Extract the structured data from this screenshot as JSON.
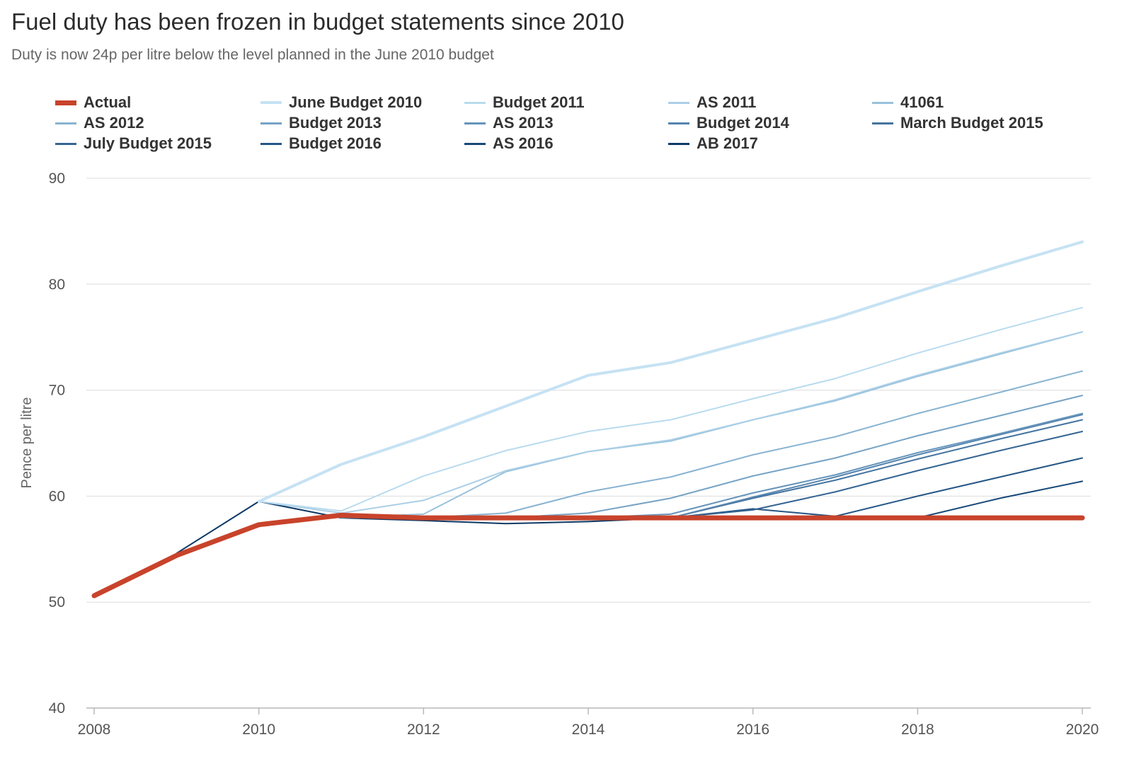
{
  "chart_data": {
    "type": "line",
    "title": "Fuel duty has been frozen in budget statements since 2010",
    "subtitle": "Duty is now 24p per litre below the level planned in the June 2010 budget",
    "xlabel": "",
    "ylabel": "Pence per litre",
    "x": [
      2008,
      2009,
      2010,
      2011,
      2012,
      2013,
      2014,
      2015,
      2016,
      2017,
      2018,
      2019,
      2020
    ],
    "xticks": [
      "2008",
      "2010",
      "2012",
      "2014",
      "2016",
      "2018",
      "2020"
    ],
    "yticks": [
      "40",
      "50",
      "60",
      "70",
      "80",
      "90"
    ],
    "xlim": [
      2008,
      2020
    ],
    "ylim": [
      40,
      90
    ],
    "grid": true,
    "legend_position": "top",
    "series": [
      {
        "name": "Actual",
        "color": "#c8432b",
        "values": [
          50.6,
          54.4,
          57.3,
          58.2,
          57.95,
          57.95,
          57.95,
          57.95,
          57.95,
          57.95,
          57.95,
          57.95,
          57.95
        ]
      },
      {
        "name": "June Budget 2010",
        "color": "#c6e2f3",
        "values": [
          null,
          null,
          59.5,
          63.0,
          65.6,
          68.5,
          71.4,
          72.6,
          74.7,
          76.8,
          79.3,
          81.7,
          84.0
        ]
      },
      {
        "name": "Budget 2011",
        "color": "#b9dbee",
        "values": [
          null,
          null,
          59.5,
          58.6,
          61.9,
          64.3,
          66.1,
          67.2,
          69.2,
          71.1,
          73.5,
          75.7,
          77.8
        ]
      },
      {
        "name": "AS 2011",
        "color": "#aacfe6",
        "values": [
          null,
          null,
          59.5,
          58.4,
          59.6,
          62.4,
          64.2,
          65.3,
          67.2,
          69.1,
          71.4,
          73.5,
          75.5
        ]
      },
      {
        "name": "41061",
        "color": "#99c2dc",
        "values": [
          null,
          null,
          null,
          58.0,
          58.3,
          62.3,
          64.2,
          65.2,
          67.2,
          69.0,
          71.3,
          73.4,
          75.5
        ]
      },
      {
        "name": "AS 2012",
        "color": "#88b3d1",
        "values": [
          null,
          null,
          null,
          58.0,
          57.95,
          58.4,
          60.4,
          61.8,
          63.9,
          65.6,
          67.8,
          69.8,
          71.8
        ]
      },
      {
        "name": "Budget 2013",
        "color": "#76a3c5",
        "values": [
          null,
          null,
          null,
          58.0,
          57.95,
          57.95,
          58.4,
          59.8,
          61.9,
          63.6,
          65.7,
          67.6,
          69.5
        ]
      },
      {
        "name": "AS 2013",
        "color": "#6594bb",
        "values": [
          null,
          null,
          null,
          58.0,
          57.95,
          57.95,
          57.95,
          58.3,
          60.3,
          62.0,
          64.1,
          65.9,
          67.8
        ]
      },
      {
        "name": "Budget 2014",
        "color": "#5584ae",
        "values": [
          null,
          null,
          null,
          58.0,
          57.95,
          57.95,
          57.95,
          57.95,
          59.9,
          61.8,
          63.9,
          65.8,
          67.7
        ]
      },
      {
        "name": "March Budget 2015",
        "color": "#4474a0",
        "values": [
          null,
          null,
          null,
          58.0,
          57.95,
          57.95,
          57.95,
          57.95,
          59.8,
          61.5,
          63.5,
          65.4,
          67.2
        ]
      },
      {
        "name": "July Budget 2015",
        "color": "#346592",
        "values": [
          null,
          null,
          null,
          58.0,
          57.95,
          57.95,
          57.95,
          57.95,
          58.7,
          60.4,
          62.4,
          64.3,
          66.1
        ]
      },
      {
        "name": "Budget 2016",
        "color": "#255685",
        "values": [
          null,
          null,
          null,
          null,
          null,
          null,
          null,
          57.95,
          58.8,
          58.1,
          60.0,
          61.8,
          63.6
        ]
      },
      {
        "name": "AS 2016",
        "color": "#174878",
        "values": [
          null,
          null,
          null,
          null,
          null,
          null,
          null,
          null,
          57.95,
          58.1,
          57.95,
          59.8,
          61.4
        ]
      },
      {
        "name": "AB 2017",
        "color": "#0d3a66",
        "values": [
          null,
          54.6,
          59.5,
          57.95,
          57.7,
          57.4,
          57.6,
          57.95,
          57.95,
          57.95,
          57.95,
          57.95,
          57.95
        ]
      }
    ]
  }
}
